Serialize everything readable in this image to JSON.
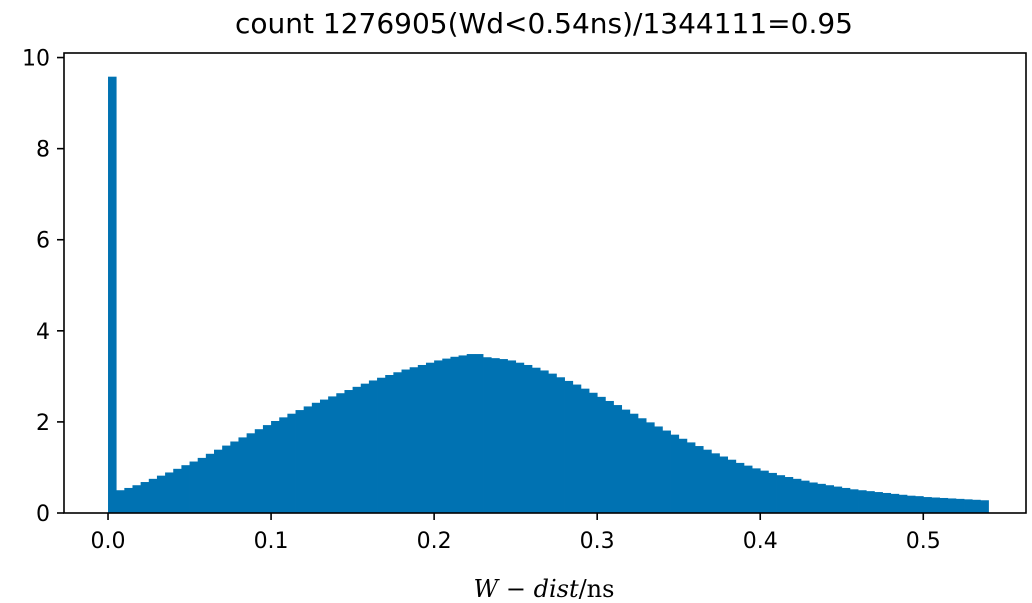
{
  "chart_data": {
    "type": "bar",
    "title": "count 1276905(Wd<0.54ns)/1344111=0.95",
    "xlabel": "W - dist/ns",
    "ylabel": "",
    "xlim": [
      -0.027,
      0.563
    ],
    "ylim": [
      0,
      10.1
    ],
    "xticks": [
      0.0,
      0.1,
      0.2,
      0.3,
      0.4,
      0.5
    ],
    "xtick_labels": [
      "0.0",
      "0.1",
      "0.2",
      "0.3",
      "0.4",
      "0.5"
    ],
    "yticks": [
      0,
      2,
      4,
      6,
      8,
      10
    ],
    "ytick_labels": [
      "0",
      "2",
      "4",
      "6",
      "8",
      "10"
    ],
    "grid": false,
    "bar_color": "#0072b2",
    "bin_start": 0.0,
    "bin_width": 0.005,
    "values": [
      9.58,
      0.5,
      0.55,
      0.61,
      0.68,
      0.75,
      0.82,
      0.89,
      0.97,
      1.05,
      1.13,
      1.21,
      1.3,
      1.39,
      1.48,
      1.57,
      1.66,
      1.75,
      1.84,
      1.93,
      2.02,
      2.1,
      2.18,
      2.26,
      2.34,
      2.42,
      2.49,
      2.56,
      2.63,
      2.7,
      2.77,
      2.84,
      2.91,
      2.97,
      3.03,
      3.09,
      3.15,
      3.2,
      3.25,
      3.3,
      3.35,
      3.39,
      3.43,
      3.46,
      3.49,
      3.49,
      3.42,
      3.4,
      3.38,
      3.35,
      3.3,
      3.25,
      3.19,
      3.13,
      3.06,
      2.98,
      2.9,
      2.82,
      2.73,
      2.64,
      2.55,
      2.46,
      2.37,
      2.27,
      2.18,
      2.08,
      1.99,
      1.9,
      1.81,
      1.72,
      1.63,
      1.55,
      1.47,
      1.39,
      1.31,
      1.24,
      1.17,
      1.1,
      1.04,
      0.98,
      0.93,
      0.88,
      0.83,
      0.79,
      0.75,
      0.71,
      0.67,
      0.64,
      0.61,
      0.58,
      0.55,
      0.52,
      0.5,
      0.48,
      0.46,
      0.44,
      0.42,
      0.4,
      0.38,
      0.37,
      0.35,
      0.34,
      0.33,
      0.32,
      0.31,
      0.3,
      0.29,
      0.28
    ]
  }
}
